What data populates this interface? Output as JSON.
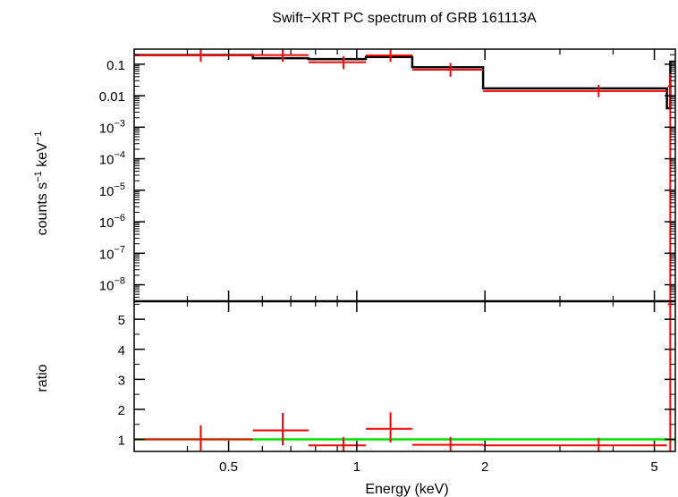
{
  "title": "Swift−XRT PC spectrum of GRB 161113A",
  "x_axis_label": "Energy (keV)",
  "colors": {
    "data": "#ff0000",
    "model": "#000000",
    "unity": "#00e000",
    "axes": "#000000"
  },
  "chart_data": [
    {
      "type": "line",
      "panel": "spectrum",
      "ylabel_main": "counts s",
      "ylabel_s_exp": "−1",
      "ylabel_kev": " keV",
      "ylabel_kev_exp": "−1",
      "x_scale": "log",
      "y_scale": "log",
      "xlim": [
        0.3,
        5.6
      ],
      "ylim": [
        3e-09,
        0.3
      ],
      "y_ticks": [
        {
          "value": 0.1,
          "label": "0.1"
        },
        {
          "value": 0.01,
          "label": "0.01"
        },
        {
          "value": 0.001,
          "base": "10",
          "exp": "−3"
        },
        {
          "value": 0.0001,
          "base": "10",
          "exp": "−4"
        },
        {
          "value": 1e-05,
          "base": "10",
          "exp": "−5"
        },
        {
          "value": 1e-06,
          "base": "10",
          "exp": "−6"
        },
        {
          "value": 1e-07,
          "base": "10",
          "exp": "−7"
        },
        {
          "value": 1e-08,
          "base": "10",
          "exp": "−8"
        }
      ],
      "series": [
        {
          "kind": "model",
          "bins": [
            {
              "xlo": 0.3,
              "xhi": 0.57,
              "y": 0.195
            },
            {
              "xlo": 0.57,
              "xhi": 0.77,
              "y": 0.155
            },
            {
              "xlo": 0.77,
              "xhi": 1.05,
              "y": 0.145
            },
            {
              "xlo": 1.05,
              "xhi": 1.35,
              "y": 0.17
            },
            {
              "xlo": 1.35,
              "xhi": 1.98,
              "y": 0.08
            },
            {
              "xlo": 1.98,
              "xhi": 5.35,
              "y": 0.017
            },
            {
              "xlo": 5.35,
              "xhi": 5.45,
              "y": 0.004
            },
            {
              "xlo": 5.45,
              "xhi": 5.6,
              "y": 0.12
            }
          ]
        },
        {
          "kind": "data",
          "points": [
            {
              "x": 0.43,
              "xlo": 0.3,
              "xhi": 0.57,
              "y": 0.19,
              "ylo": 0.12,
              "yhi": 0.3
            },
            {
              "x": 0.67,
              "xlo": 0.57,
              "xhi": 0.77,
              "y": 0.195,
              "ylo": 0.12,
              "yhi": 0.32
            },
            {
              "x": 0.93,
              "xlo": 0.77,
              "xhi": 1.05,
              "y": 0.115,
              "ylo": 0.07,
              "yhi": 0.18
            },
            {
              "x": 1.2,
              "xlo": 1.05,
              "xhi": 1.35,
              "y": 0.19,
              "ylo": 0.12,
              "yhi": 0.3
            },
            {
              "x": 1.66,
              "xlo": 1.35,
              "xhi": 1.98,
              "y": 0.067,
              "ylo": 0.04,
              "yhi": 0.11
            },
            {
              "x": 3.7,
              "xlo": 1.98,
              "xhi": 5.35,
              "y": 0.014,
              "ylo": 0.009,
              "yhi": 0.022
            },
            {
              "x": 5.45,
              "xlo": 5.38,
              "xhi": 5.52,
              "y": 0.02,
              "ylo": 3e-09,
              "yhi": 0.05
            }
          ]
        }
      ]
    },
    {
      "type": "scatter",
      "panel": "ratio",
      "ylabel": "ratio",
      "x_scale": "log",
      "y_scale": "linear",
      "xlim": [
        0.3,
        5.6
      ],
      "ylim": [
        0.6,
        5.6
      ],
      "y_ticks": [
        1,
        2,
        3,
        4,
        5
      ],
      "x_ticks": [
        {
          "value": 0.5,
          "label": "0.5"
        },
        {
          "value": 1,
          "label": "1"
        },
        {
          "value": 2,
          "label": "2"
        },
        {
          "value": 5,
          "label": "5"
        }
      ],
      "x_minor_ticks": [
        0.3,
        0.4,
        0.6,
        0.7,
        0.8,
        0.9,
        3,
        4
      ],
      "reference_line": 1,
      "series": [
        {
          "kind": "data",
          "points": [
            {
              "x": 0.43,
              "xlo": 0.3,
              "xhi": 0.57,
              "y": 1.0,
              "ylo": 0.63,
              "yhi": 1.47
            },
            {
              "x": 0.67,
              "xlo": 0.57,
              "xhi": 0.77,
              "y": 1.3,
              "ylo": 0.8,
              "yhi": 1.88
            },
            {
              "x": 0.93,
              "xlo": 0.77,
              "xhi": 1.05,
              "y": 0.8,
              "ylo": 0.6,
              "yhi": 1.08
            },
            {
              "x": 1.2,
              "xlo": 1.05,
              "xhi": 1.35,
              "y": 1.35,
              "ylo": 0.9,
              "yhi": 1.9
            },
            {
              "x": 1.66,
              "xlo": 1.35,
              "xhi": 1.98,
              "y": 0.82,
              "ylo": 0.62,
              "yhi": 1.08
            },
            {
              "x": 3.7,
              "xlo": 1.98,
              "xhi": 5.35,
              "y": 0.8,
              "ylo": 0.62,
              "yhi": 1.05
            },
            {
              "x": 5.45,
              "xlo": 5.38,
              "xhi": 5.52,
              "y": 5.5,
              "ylo": 0.6,
              "yhi": 5.6
            }
          ]
        }
      ]
    }
  ]
}
